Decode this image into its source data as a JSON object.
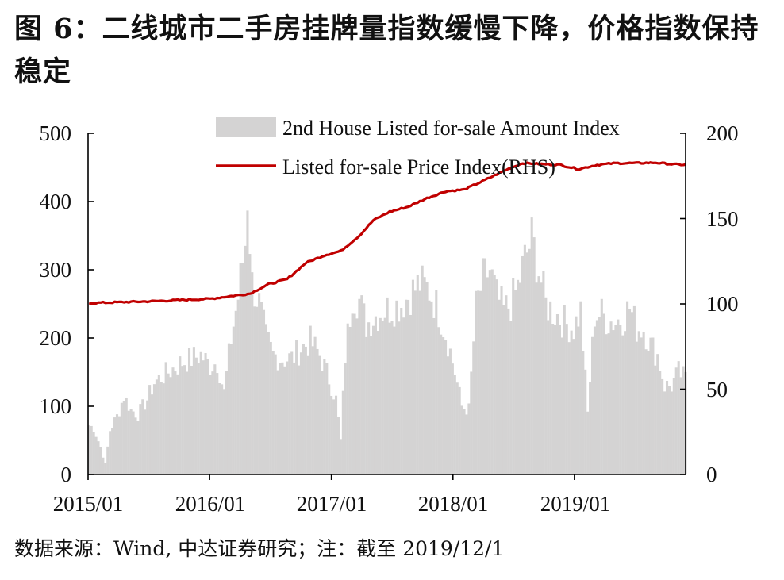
{
  "title": "图 6：二线城市二手房挂牌量指数缓慢下降，价格指数保持稳定",
  "source": "数据来源：Wind, 中达证券研究；注：截至 2019/12/1",
  "colors": {
    "bars": "#d4d3d3",
    "line": "#c00000",
    "axis": "#000000"
  },
  "chart_data": {
    "type": "bar+line",
    "x_tick_labels": [
      "2015/01",
      "2016/01",
      "2017/01",
      "2018/01",
      "2019/01"
    ],
    "y_left": {
      "ylim": [
        0,
        500
      ],
      "ticks": [
        "0",
        "100",
        "200",
        "300",
        "400",
        "500"
      ]
    },
    "y_right": {
      "ylim": [
        0,
        200
      ],
      "ticks": [
        "0",
        "50",
        "100",
        "150",
        "200"
      ]
    },
    "legend_position": "top-right",
    "series": [
      {
        "name": "2nd House Listed for-sale Amount Index",
        "type": "bar",
        "axis": "left",
        "frequency": "weekly",
        "start": "2015-01-04",
        "end": "2019-12-01",
        "keyframes": [
          [
            "2015-01-04",
            72
          ],
          [
            "2015-01-18",
            68
          ],
          [
            "2015-02-08",
            40
          ],
          [
            "2015-02-22",
            15
          ],
          [
            "2015-03-08",
            65
          ],
          [
            "2015-03-29",
            85
          ],
          [
            "2015-04-19",
            115
          ],
          [
            "2015-05-10",
            95
          ],
          [
            "2015-05-31",
            88
          ],
          [
            "2015-06-28",
            110
          ],
          [
            "2015-07-19",
            135
          ],
          [
            "2015-08-16",
            145
          ],
          [
            "2015-09-13",
            155
          ],
          [
            "2015-10-11",
            165
          ],
          [
            "2015-11-08",
            170
          ],
          [
            "2015-12-06",
            175
          ],
          [
            "2016-01-03",
            160
          ],
          [
            "2016-01-24",
            165
          ],
          [
            "2016-02-14",
            120
          ],
          [
            "2016-03-06",
            200
          ],
          [
            "2016-03-27",
            260
          ],
          [
            "2016-04-17",
            340
          ],
          [
            "2016-04-24",
            410
          ],
          [
            "2016-05-08",
            280
          ],
          [
            "2016-05-29",
            250
          ],
          [
            "2016-06-19",
            200
          ],
          [
            "2016-07-10",
            175
          ],
          [
            "2016-08-07",
            170
          ],
          [
            "2016-09-04",
            170
          ],
          [
            "2016-10-02",
            185
          ],
          [
            "2016-10-30",
            195
          ],
          [
            "2016-11-27",
            175
          ],
          [
            "2016-12-25",
            140
          ],
          [
            "2017-01-15",
            110
          ],
          [
            "2017-01-29",
            50
          ],
          [
            "2017-02-12",
            175
          ],
          [
            "2017-03-05",
            265
          ],
          [
            "2017-03-26",
            255
          ],
          [
            "2017-04-16",
            220
          ],
          [
            "2017-05-07",
            230
          ],
          [
            "2017-06-04",
            240
          ],
          [
            "2017-07-02",
            245
          ],
          [
            "2017-07-30",
            250
          ],
          [
            "2017-08-27",
            265
          ],
          [
            "2017-09-24",
            280
          ],
          [
            "2017-10-22",
            270
          ],
          [
            "2017-11-19",
            240
          ],
          [
            "2017-12-17",
            195
          ],
          [
            "2018-01-07",
            150
          ],
          [
            "2018-01-28",
            100
          ],
          [
            "2018-02-18",
            95
          ],
          [
            "2018-03-11",
            245
          ],
          [
            "2018-04-01",
            285
          ],
          [
            "2018-04-22",
            300
          ],
          [
            "2018-05-13",
            260
          ],
          [
            "2018-06-03",
            240
          ],
          [
            "2018-06-24",
            250
          ],
          [
            "2018-07-15",
            275
          ],
          [
            "2018-08-05",
            315
          ],
          [
            "2018-08-26",
            345
          ],
          [
            "2018-09-16",
            300
          ],
          [
            "2018-10-07",
            250
          ],
          [
            "2018-10-28",
            240
          ],
          [
            "2018-11-18",
            230
          ],
          [
            "2018-12-09",
            220
          ],
          [
            "2018-12-30",
            215
          ],
          [
            "2019-01-20",
            240
          ],
          [
            "2019-02-10",
            90
          ],
          [
            "2019-03-03",
            235
          ],
          [
            "2019-03-24",
            235
          ],
          [
            "2019-04-14",
            225
          ],
          [
            "2019-05-05",
            225
          ],
          [
            "2019-05-26",
            230
          ],
          [
            "2019-06-16",
            245
          ],
          [
            "2019-07-07",
            215
          ],
          [
            "2019-07-28",
            215
          ],
          [
            "2019-08-18",
            190
          ],
          [
            "2019-09-08",
            175
          ],
          [
            "2019-09-29",
            130
          ],
          [
            "2019-10-20",
            130
          ],
          [
            "2019-11-10",
            150
          ],
          [
            "2019-12-01",
            140
          ]
        ]
      },
      {
        "name": "Listed for-sale Price Index(RHS)",
        "type": "line",
        "axis": "right",
        "frequency": "weekly",
        "start": "2015-01-04",
        "end": "2019-12-01",
        "keyframes": [
          [
            "2015-01-04",
            100.5
          ],
          [
            "2015-07-05",
            101.5
          ],
          [
            "2016-01-03",
            103
          ],
          [
            "2016-05-01",
            106
          ],
          [
            "2016-06-26",
            111.5
          ],
          [
            "2016-08-21",
            114.5
          ],
          [
            "2016-10-16",
            124
          ],
          [
            "2016-12-11",
            128.5
          ],
          [
            "2017-01-29",
            131
          ],
          [
            "2017-03-26",
            140
          ],
          [
            "2017-05-07",
            149
          ],
          [
            "2017-06-25",
            154
          ],
          [
            "2017-08-20",
            157
          ],
          [
            "2017-10-15",
            162
          ],
          [
            "2017-12-10",
            166
          ],
          [
            "2018-02-04",
            167
          ],
          [
            "2018-04-01",
            172
          ],
          [
            "2018-06-03",
            178
          ],
          [
            "2018-07-29",
            182.5
          ],
          [
            "2018-09-23",
            182
          ],
          [
            "2018-11-18",
            181.5
          ],
          [
            "2019-01-13",
            179
          ],
          [
            "2019-03-10",
            181.5
          ],
          [
            "2019-05-05",
            182.5
          ],
          [
            "2019-07-07",
            182.5
          ],
          [
            "2019-09-01",
            182.8
          ],
          [
            "2019-10-27",
            181.8
          ],
          [
            "2019-12-01",
            181.5
          ]
        ]
      }
    ]
  }
}
